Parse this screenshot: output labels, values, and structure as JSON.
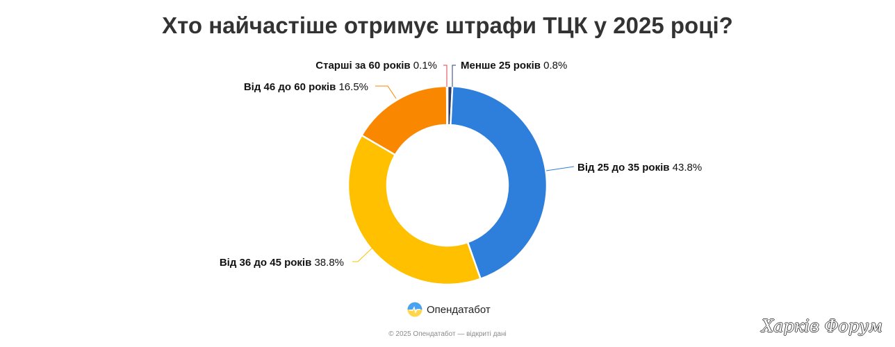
{
  "chart_data": {
    "type": "pie",
    "title": "Хто найчастіше отримує штрафи ТЦК у 2025 році?",
    "categories": [
      "Менше 25 років",
      "Від 25 до 35 років",
      "Від 36 до 45 років",
      "Від 46 до 60 років",
      "Старші за 60 років"
    ],
    "values": [
      0.8,
      43.8,
      38.8,
      16.5,
      0.1
    ],
    "value_labels": [
      "0.8%",
      "43.8%",
      "38.8%",
      "16.5%",
      "0.1%"
    ],
    "colors": [
      "#2d3e6b",
      "#2e7fdb",
      "#ffc000",
      "#fa8700",
      "#e04040"
    ],
    "unit": "%",
    "donut": true
  },
  "brand": {
    "name": "Опендатабот",
    "icon": "opendatabot-logo-icon"
  },
  "footer": {
    "text": "© 2025 Опендатабот — відкриті дані"
  },
  "watermark": {
    "text": "Харків Форум"
  }
}
